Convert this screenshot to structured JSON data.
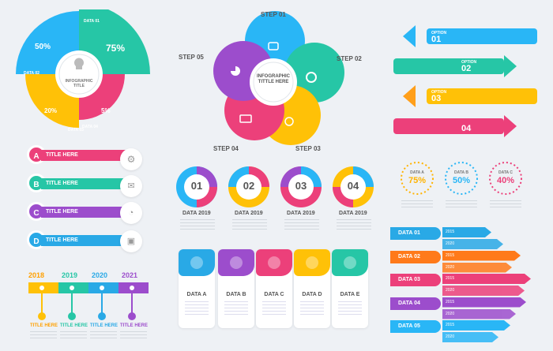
{
  "pie": {
    "title": "INFOGRAPHIC TITLE",
    "labels": [
      "DATA 01",
      "DATA 02",
      "DATA 03",
      "DATA 04"
    ],
    "values": [
      "50%",
      "75%",
      "20%",
      "5%"
    ]
  },
  "cycle": {
    "center": "INFOGRAPHIC TITTLE HERE",
    "steps": [
      "STEP 01",
      "STEP 02",
      "STEP 03",
      "STEP 04",
      "STEP 05"
    ]
  },
  "options": {
    "label": "OPTION",
    "items": [
      "01",
      "02",
      "03",
      "04"
    ],
    "colors": [
      "#29b6f6",
      "#26c6a6",
      "#ffc107",
      "#ec407a"
    ]
  },
  "letters": {
    "items": [
      "A",
      "B",
      "C",
      "D"
    ],
    "title": "TITLE HERE",
    "colors": [
      "#ec407a",
      "#26c6a6",
      "#9c4dcc",
      "#29a9e6"
    ]
  },
  "donuts": {
    "items": [
      "01",
      "02",
      "03",
      "04"
    ],
    "label": "DATA 2019"
  },
  "rings": {
    "labels": [
      "DATA A",
      "DATA B",
      "DATA C"
    ],
    "values": [
      "75%",
      "50%",
      "40%"
    ],
    "colors": [
      "#ffb300",
      "#29b6f6",
      "#ec407a"
    ]
  },
  "timeline": {
    "years": [
      "2018",
      "2019",
      "2020",
      "2021"
    ],
    "title": "TITLE HERE",
    "colors": [
      "#ffc107",
      "#26c6a6",
      "#29a9e6",
      "#9c4dcc"
    ]
  },
  "cards": {
    "labels": [
      "DATA A",
      "DATA B",
      "DATA C",
      "DATA D",
      "DATA E"
    ],
    "colors": [
      "#29a9e6",
      "#9c4dcc",
      "#ec407a",
      "#ffc107",
      "#26c6a6"
    ]
  },
  "bars": {
    "labels": [
      "DATA 01",
      "DATA 02",
      "DATA 03",
      "DATA 04",
      "DATA 05"
    ],
    "years": [
      "2015",
      "2020"
    ],
    "colors": [
      "#29a9e6",
      "#ff7a1a",
      "#ec407a",
      "#9c4dcc",
      "#29b6f6"
    ],
    "fill2015": [
      0.38,
      0.72,
      0.84,
      0.78,
      0.6
    ],
    "fill2020": [
      0.52,
      0.62,
      0.76,
      0.66,
      0.46
    ]
  }
}
